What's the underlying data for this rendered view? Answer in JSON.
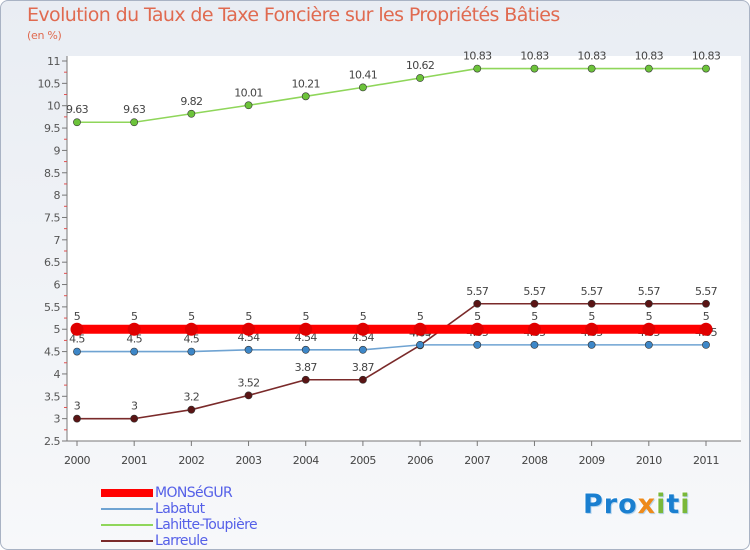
{
  "title": "Evolution du Taux de Taxe Foncière sur les Propriétés Bâties",
  "subtitle": "(en %)",
  "brand": {
    "text": "Proxiti",
    "parts": [
      "Pro",
      "x",
      "i",
      "t",
      "i"
    ]
  },
  "chart_data": {
    "type": "line",
    "categories": [
      "2000",
      "2001",
      "2002",
      "2003",
      "2004",
      "2005",
      "2006",
      "2007",
      "2008",
      "2009",
      "2010",
      "2011"
    ],
    "ylim": [
      2.5,
      11
    ],
    "yticks": [
      "2.5",
      "3",
      "3.5",
      "4",
      "4.5",
      "5",
      "5.5",
      "6",
      "6.5",
      "7",
      "7.5",
      "8",
      "8.5",
      "9",
      "9.5",
      "10",
      "10.5",
      "11"
    ],
    "grid": false,
    "legend_position": "bottom-left",
    "series": [
      {
        "name": "Lahitte-Toupière",
        "color": "#8fd65a",
        "dot": "#6cc33a",
        "values": [
          9.63,
          9.63,
          9.82,
          10.01,
          10.21,
          10.41,
          10.62,
          10.83,
          10.83,
          10.83,
          10.83,
          10.83
        ],
        "labels": [
          "9.63",
          "9.63",
          "9.82",
          "10.01",
          "10.21",
          "10.41",
          "10.62",
          "10.83",
          "10.83",
          "10.83",
          "10.83",
          "10.83"
        ]
      },
      {
        "name": "Larreule",
        "color": "#7a2a2a",
        "dot": "#5a1414",
        "values": [
          3,
          3,
          3.2,
          3.52,
          3.87,
          3.87,
          4.64,
          5.57,
          5.57,
          5.57,
          5.57,
          5.57
        ],
        "labels": [
          "3",
          "3",
          "3.2",
          "3.52",
          "3.87",
          "3.87",
          "4.64",
          "5.57",
          "5.57",
          "5.57",
          "5.57",
          "5.57"
        ]
      },
      {
        "name": "Labatut",
        "color": "#6fa3d2",
        "dot": "#3d87c8",
        "values": [
          4.5,
          4.5,
          4.5,
          4.54,
          4.54,
          4.54,
          4.65,
          4.65,
          4.65,
          4.65,
          4.65,
          4.65
        ],
        "labels": [
          "4.5",
          "4.5",
          "4.5",
          "4.54",
          "4.54",
          "4.54",
          "4.65",
          "4.65",
          "4.65",
          "4.65",
          "4.65",
          "4.65"
        ]
      },
      {
        "name": "MONSéGUR",
        "color": "#ff0000",
        "dot": "#e00000",
        "values": [
          5,
          5,
          5,
          5,
          5,
          5,
          5,
          5,
          5,
          5,
          5,
          5
        ],
        "labels": [
          "5",
          "5",
          "5",
          "5",
          "5",
          "5",
          "5",
          "5",
          "5",
          "5",
          "5",
          "5"
        ]
      }
    ],
    "legend_order": [
      "MONSéGUR",
      "Labatut",
      "Lahitte-Toupière",
      "Larreule"
    ]
  }
}
